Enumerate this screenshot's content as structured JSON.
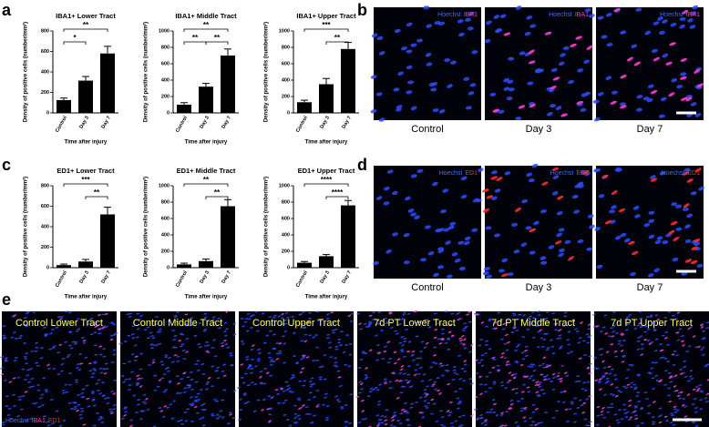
{
  "panel_labels": [
    "a",
    "b",
    "c",
    "d",
    "e"
  ],
  "chart_data": [
    {
      "type": "bar",
      "title": "IBA1+ Lower Tract",
      "categories": [
        "Control",
        "Day 3",
        "Day 7"
      ],
      "values": [
        125,
        315,
        580
      ],
      "errors": [
        20,
        40,
        70
      ],
      "color": "#000000",
      "ylim": [
        0,
        800
      ],
      "yticks": [
        0,
        200,
        400,
        600,
        800
      ],
      "ylabel": "Density of positive cells (number/mm²)",
      "xlabel": "Time after injury",
      "annotations": [
        "**",
        "*"
      ]
    },
    {
      "type": "bar",
      "title": "IBA1+ Middle Tract",
      "categories": [
        "Control",
        "Day 3",
        "Day 7"
      ],
      "values": [
        100,
        320,
        700
      ],
      "errors": [
        25,
        40,
        80
      ],
      "color": "#000000",
      "ylim": [
        0,
        1000
      ],
      "yticks": [
        0,
        200,
        400,
        600,
        800,
        1000
      ],
      "ylabel": "Density of positive cells (number/mm²)",
      "xlabel": "Time after injury",
      "annotations": [
        "**",
        "**",
        "**"
      ]
    },
    {
      "type": "bar",
      "title": "IBA1+ Upper Tract",
      "categories": [
        "Control",
        "Day 3",
        "Day 7"
      ],
      "values": [
        130,
        350,
        780
      ],
      "errors": [
        25,
        70,
        80
      ],
      "color": "#000000",
      "ylim": [
        0,
        1000
      ],
      "yticks": [
        0,
        200,
        400,
        600,
        800,
        1000
      ],
      "ylabel": "Density of positive cells (number/mm²)",
      "xlabel": "Time after injury",
      "annotations": [
        "***",
        "**"
      ]
    },
    {
      "type": "bar",
      "title": "ED1+ Lower Tract",
      "categories": [
        "Control",
        "Day 3",
        "Day 7"
      ],
      "values": [
        25,
        60,
        520
      ],
      "errors": [
        10,
        20,
        70
      ],
      "color": "#000000",
      "ylim": [
        0,
        800
      ],
      "yticks": [
        0,
        200,
        400,
        600,
        800
      ],
      "ylabel": "Density of positive cells (number/mm²)",
      "xlabel": "Time after injury",
      "annotations": [
        "***",
        "**"
      ]
    },
    {
      "type": "bar",
      "title": "ED1+ Middle Tract",
      "categories": [
        "Control",
        "Day 3",
        "Day 7"
      ],
      "values": [
        40,
        80,
        750
      ],
      "errors": [
        15,
        25,
        80
      ],
      "color": "#000000",
      "ylim": [
        0,
        1000
      ],
      "yticks": [
        0,
        200,
        400,
        600,
        800,
        1000
      ],
      "ylabel": "Density of positive cells (number/mm²)",
      "xlabel": "Time after injury",
      "annotations": [
        "**",
        "**"
      ]
    },
    {
      "type": "bar",
      "title": "ED1+ Upper Tract",
      "categories": [
        "Control",
        "Day 3",
        "Day 7"
      ],
      "values": [
        60,
        140,
        760
      ],
      "errors": [
        15,
        20,
        60
      ],
      "color": "#000000",
      "ylim": [
        0,
        1000
      ],
      "yticks": [
        0,
        200,
        400,
        600,
        800,
        1000
      ],
      "ylabel": "Density of positive cells (number/mm²)",
      "xlabel": "Time after injury",
      "annotations": [
        "****",
        "****"
      ]
    }
  ],
  "micrographs_b": {
    "stain": [
      "Hoechst",
      "IBA1"
    ],
    "labels": [
      "Control",
      "Day 3",
      "Day 7"
    ]
  },
  "micrographs_d": {
    "stain": [
      "Hoechst",
      "ED1"
    ],
    "labels": [
      "Control",
      "Day 3",
      "Day 7"
    ]
  },
  "micrographs_e": {
    "stain": [
      "Hoechst",
      "IBA1",
      "ED1"
    ],
    "labels": [
      "Control Lower Tract",
      "Control Middle Tract",
      "Control Upper Tract",
      "7d PT Lower Tract",
      "7d PT Middle Tract",
      "7d PT Upper Tract"
    ]
  }
}
